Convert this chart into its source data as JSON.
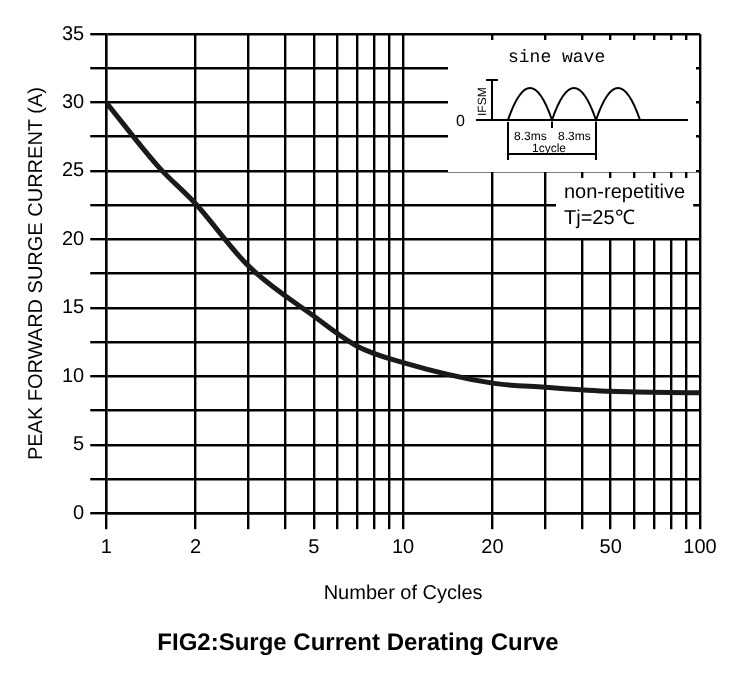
{
  "chart_data": {
    "type": "line",
    "title": "FIG2:Surge Current Derating Curve",
    "xlabel": "Number of Cycles",
    "ylabel": "PEAK FORWARD SURGE CURRENT (A)",
    "x": [
      1,
      1.5,
      2,
      3,
      5,
      7,
      10,
      20,
      30,
      50,
      100
    ],
    "series": [
      {
        "color": "#1a1a1a",
        "values": [
          30,
          25.3,
          22.6,
          18.1,
          14.4,
          12.2,
          11,
          9.5,
          9.2,
          8.9,
          8.8
        ]
      }
    ],
    "log": "x",
    "xlim": [
      1,
      100
    ],
    "ylim": [
      0,
      35
    ],
    "xticks": [
      1,
      2,
      {
        "value": 3,
        "label": null
      },
      {
        "value": 4,
        "label": null
      },
      5,
      {
        "value": 6,
        "label": null
      },
      {
        "value": 7,
        "label": null
      },
      {
        "value": 8,
        "label": null
      },
      {
        "value": 9,
        "label": null
      },
      10,
      20,
      {
        "value": 30,
        "label": null
      },
      {
        "value": 40,
        "label": null
      },
      50,
      {
        "value": 60,
        "label": null
      },
      {
        "value": 70,
        "label": null
      },
      {
        "value": 80,
        "label": null
      },
      {
        "value": 90,
        "label": null
      },
      100
    ],
    "yticks": [
      0,
      {
        "value": 2.5,
        "label": null
      },
      5,
      {
        "value": 7.5,
        "label": null
      },
      10,
      {
        "value": 12.5,
        "label": null
      },
      15,
      {
        "value": 17.5,
        "label": null
      },
      20,
      {
        "value": 22.5,
        "label": null
      },
      25,
      {
        "value": 27.5,
        "label": null
      },
      30,
      {
        "value": 32.5,
        "label": null
      },
      35
    ],
    "grid": true,
    "legend": false,
    "marker": "none",
    "line_style": "solid",
    "annotations": [
      "sine wave",
      "IFSM",
      "0",
      "8.3ms",
      "8.3ms",
      "1cycle",
      "non-repetitive\nTj=25℃"
    ]
  }
}
